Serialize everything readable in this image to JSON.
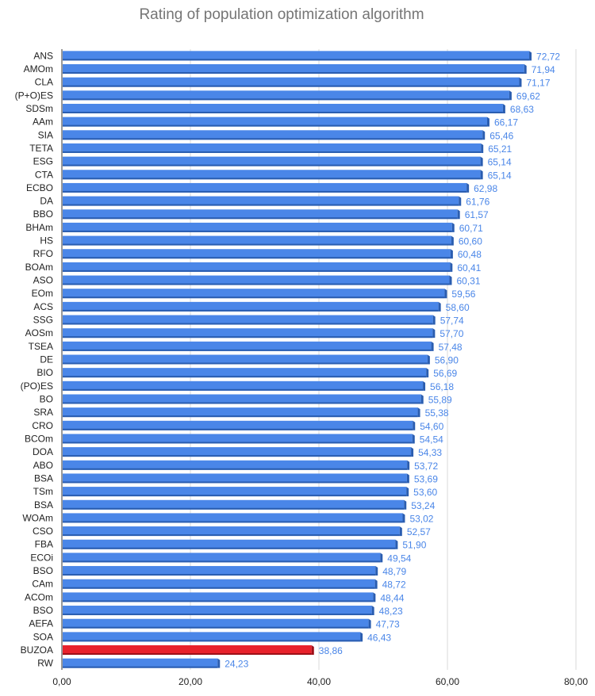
{
  "chart_data": {
    "type": "bar",
    "orientation": "horizontal",
    "title": "Rating of population optimization algorithm",
    "xlabel": "",
    "ylabel": "",
    "xlim": [
      0,
      80
    ],
    "x_ticks": [
      "0,00",
      "20,00",
      "40,00",
      "60,00",
      "80,00"
    ],
    "grid": "vertical",
    "bar_color": "#4a86e8",
    "highlight_color": "#e8212b",
    "highlight_category": "BUZOA",
    "categories": [
      "ANS",
      "AMOm",
      "CLA",
      "(P+O)ES",
      "SDSm",
      "AAm",
      "SIA",
      "TETA",
      "ESG",
      "CTA",
      "ECBO",
      "DA",
      "BBO",
      "BHAm",
      "HS",
      "RFO",
      "BOAm",
      "ASO",
      "EOm",
      "ACS",
      "SSG",
      "AOSm",
      "TSEA",
      "DE",
      "BIO",
      "(PO)ES",
      "BO",
      "SRA",
      "CRO",
      "BCOm",
      "DOA",
      "ABO",
      "BSA",
      "TSm",
      "BSA",
      "WOAm",
      "CSO",
      "FBA",
      "ECOi",
      "BSO",
      "CAm",
      "ACOm",
      "BSO",
      "AEFA",
      "SOA",
      "BUZOA",
      "RW"
    ],
    "values": [
      72.72,
      71.94,
      71.17,
      69.62,
      68.63,
      66.17,
      65.46,
      65.21,
      65.14,
      65.14,
      62.98,
      61.76,
      61.57,
      60.71,
      60.6,
      60.48,
      60.41,
      60.31,
      59.56,
      58.6,
      57.74,
      57.7,
      57.48,
      56.9,
      56.69,
      56.18,
      55.89,
      55.38,
      54.6,
      54.54,
      54.33,
      53.72,
      53.69,
      53.6,
      53.24,
      53.02,
      52.57,
      51.9,
      49.54,
      48.79,
      48.72,
      48.44,
      48.23,
      47.73,
      46.43,
      38.86,
      24.23
    ],
    "value_labels": [
      "72,72",
      "71,94",
      "71,17",
      "69,62",
      "68,63",
      "66,17",
      "65,46",
      "65,21",
      "65,14",
      "65,14",
      "62,98",
      "61,76",
      "61,57",
      "60,71",
      "60,60",
      "60,48",
      "60,41",
      "60,31",
      "59,56",
      "58,60",
      "57,74",
      "57,70",
      "57,48",
      "56,90",
      "56,69",
      "56,18",
      "55,89",
      "55,38",
      "54,60",
      "54,54",
      "54,33",
      "53,72",
      "53,69",
      "53,60",
      "53,24",
      "53,02",
      "52,57",
      "51,90",
      "49,54",
      "48,79",
      "48,72",
      "48,44",
      "48,23",
      "47,73",
      "46,43",
      "38,86",
      "24,23"
    ]
  }
}
